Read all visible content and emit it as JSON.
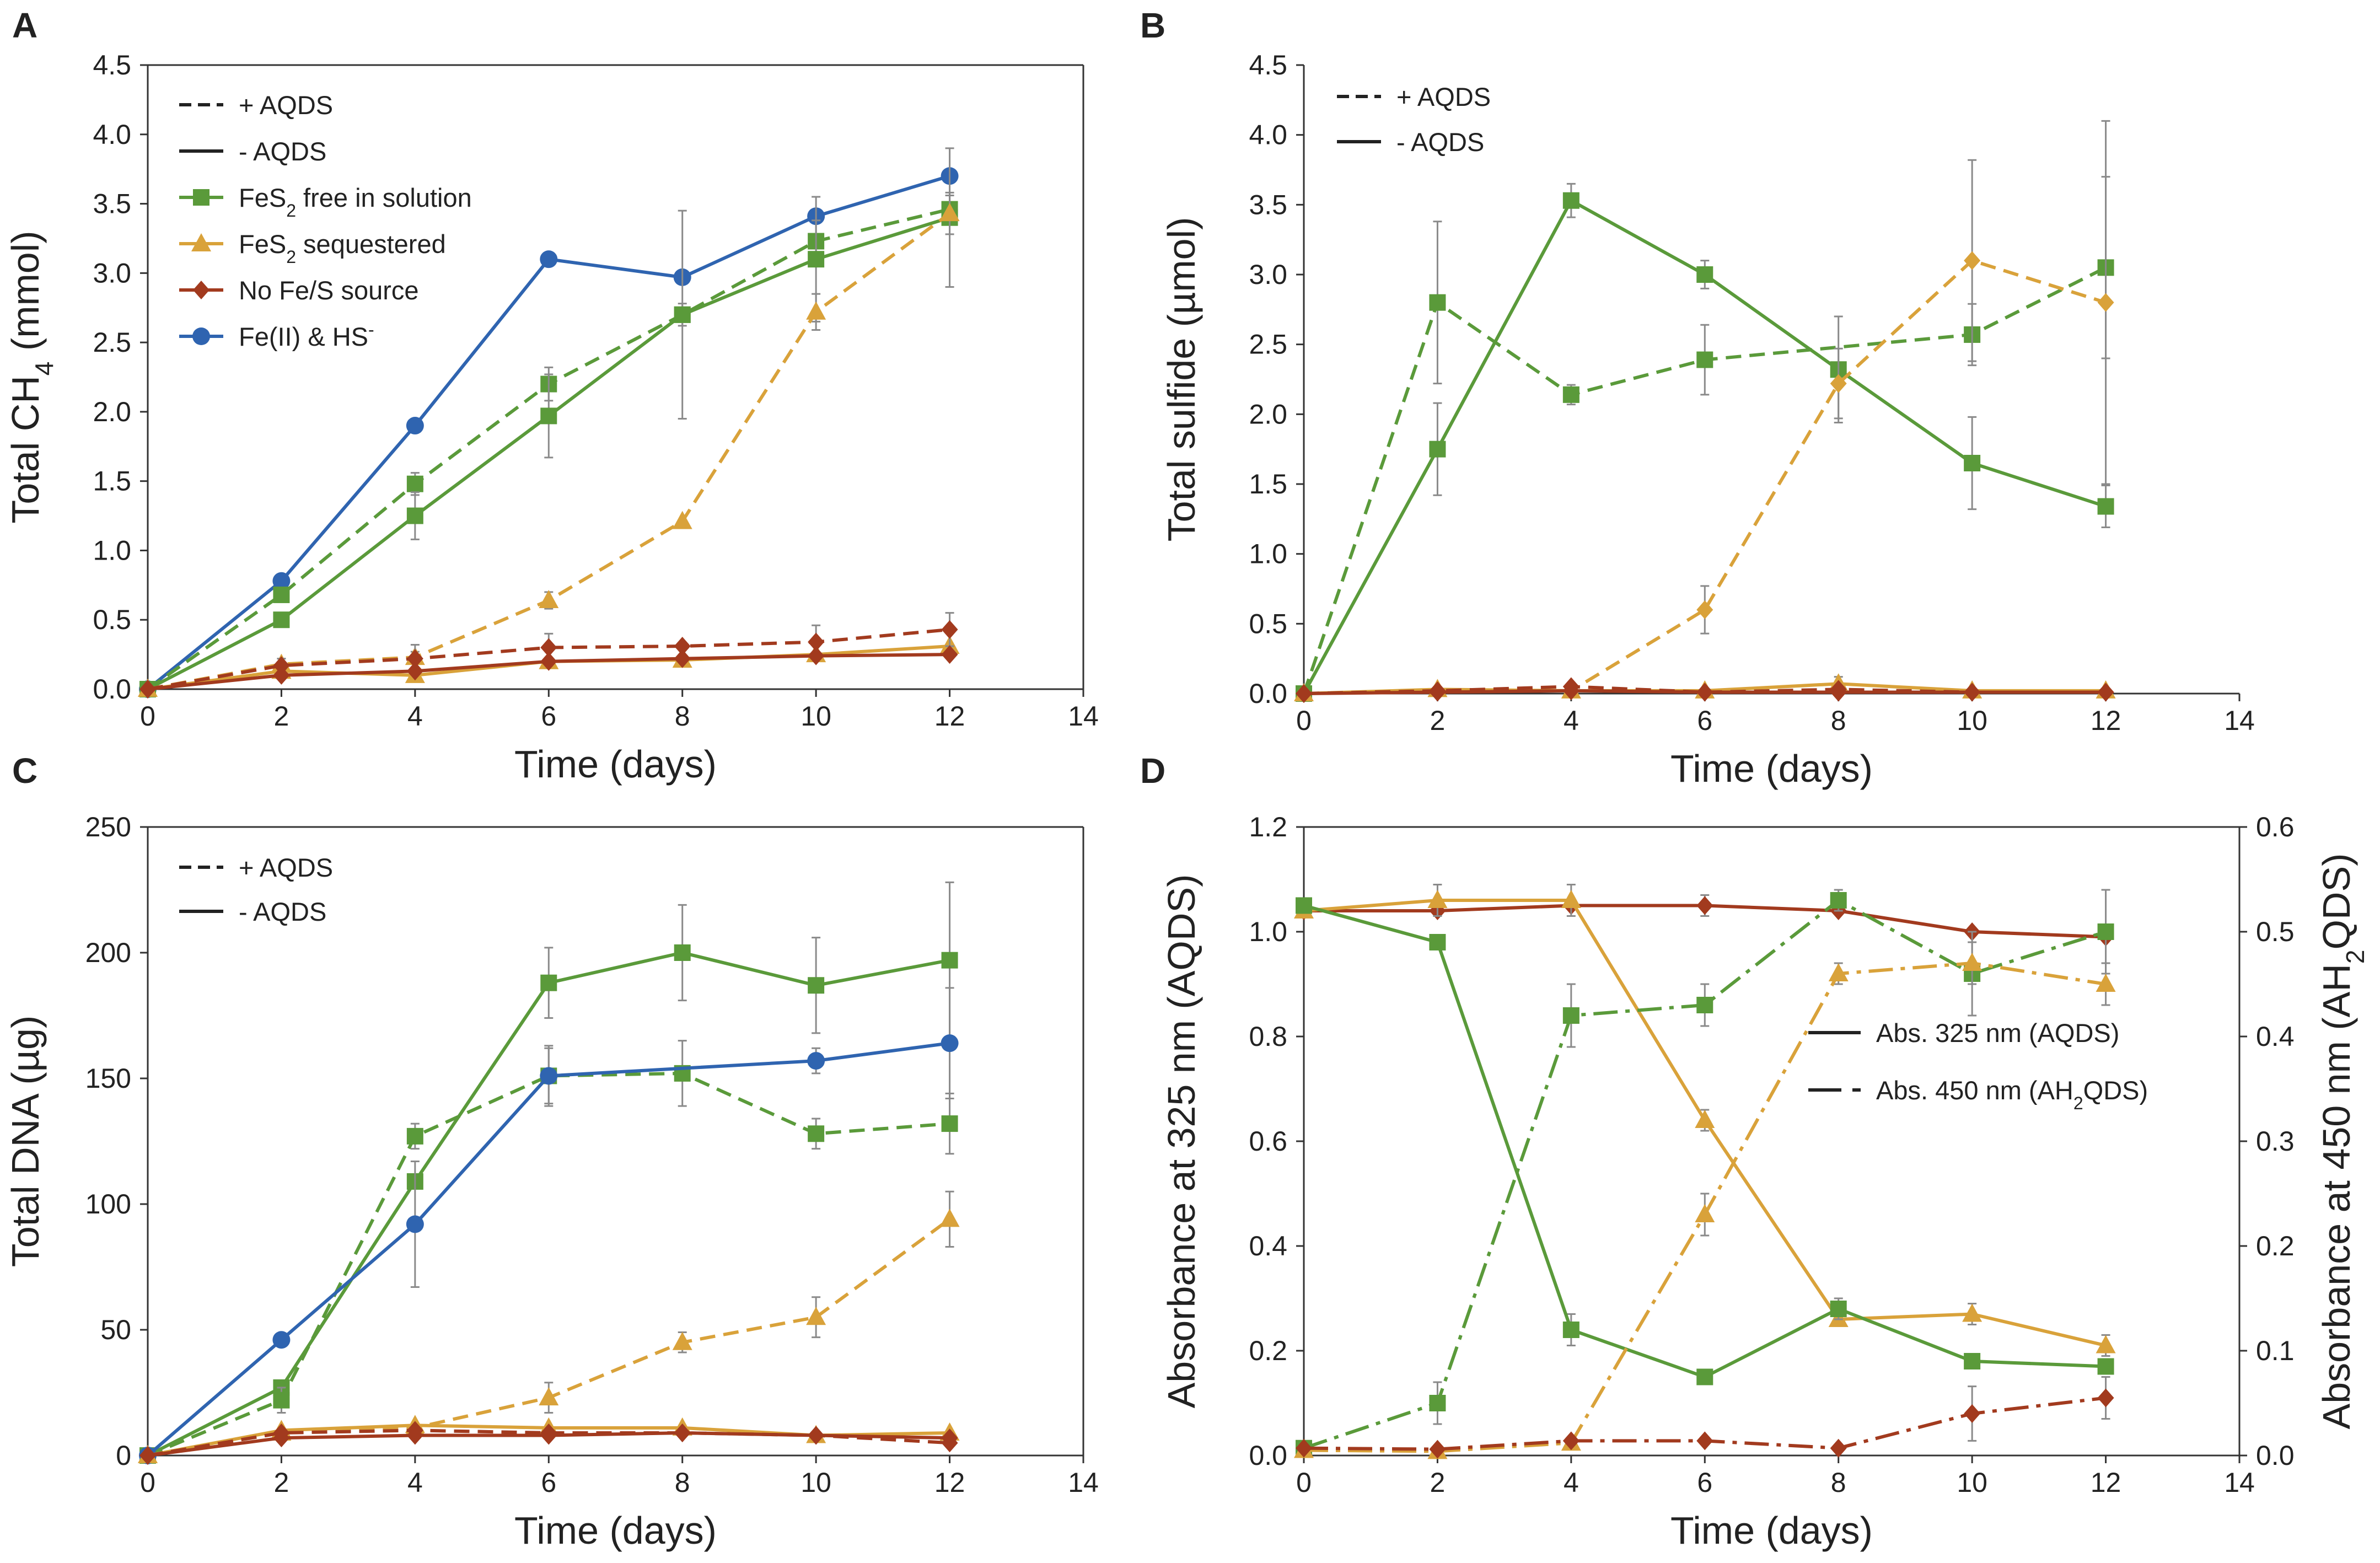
{
  "colors": {
    "green": "#5a9a3a",
    "gold": "#d9a23a",
    "brown": "#a23a1e",
    "blue": "#2f64b0",
    "errorbar": "#8a8a8a",
    "axis": "#333333"
  },
  "chart_data": [
    {
      "panel": "A",
      "type": "line",
      "xlabel": "Time (days)",
      "ylabel_main": "Total CH",
      "ylabel_sub": "4",
      "ylabel_end": " (mmol)",
      "xlim": [
        0,
        14
      ],
      "ylim": [
        0,
        4.5
      ],
      "xticks": [
        0,
        2,
        4,
        6,
        8,
        10,
        12,
        14
      ],
      "yticks": [
        0,
        0.5,
        1,
        1.5,
        2,
        2.5,
        3,
        3.5,
        4,
        4.5
      ],
      "ytick_decimals": 1,
      "legend": [
        {
          "label": "+ AQDS",
          "style": "dashed",
          "color": "#222222"
        },
        {
          "label": "- AQDS",
          "style": "solid",
          "color": "#222222"
        },
        {
          "label_pre": "FeS",
          "label_sub": "2",
          "label_post": " free in solution",
          "color": "#5a9a3a",
          "marker": "square"
        },
        {
          "label_pre": "FeS",
          "label_sub": "2",
          "label_post": " sequestered",
          "color": "#d9a23a",
          "marker": "triangle"
        },
        {
          "label": "No Fe/S source",
          "color": "#a23a1e",
          "marker": "diamond"
        },
        {
          "label_pre": "Fe(II) & HS",
          "label_sup": "-",
          "color": "#2f64b0",
          "marker": "circle"
        }
      ],
      "series": [
        {
          "name": "Fe(II) & HS-",
          "dash": "solid",
          "color": "#2f64b0",
          "marker": "circle",
          "x": [
            0,
            2,
            4,
            6,
            8,
            10,
            12
          ],
          "y": [
            0,
            0.78,
            1.9,
            3.1,
            2.97,
            3.41,
            3.7
          ],
          "err": [
            0,
            0,
            0,
            0,
            0,
            0,
            0
          ]
        },
        {
          "name": "FeS2 free in solution +AQDS",
          "dash": "dashed",
          "color": "#5a9a3a",
          "marker": "square",
          "x": [
            0,
            2,
            4,
            6,
            8,
            10,
            12
          ],
          "y": [
            0,
            0.68,
            1.48,
            2.2,
            2.7,
            3.23,
            3.46
          ],
          "err": [
            0,
            0.05,
            0.08,
            0.12,
            0.08,
            0.15,
            0.1
          ]
        },
        {
          "name": "FeS2 free in solution -AQDS",
          "dash": "solid",
          "color": "#5a9a3a",
          "marker": "square",
          "x": [
            0,
            2,
            4,
            6,
            8,
            10,
            12
          ],
          "y": [
            0,
            0.5,
            1.25,
            1.97,
            2.7,
            3.1,
            3.4
          ],
          "err": [
            0,
            0.03,
            0.17,
            0.3,
            0.75,
            0.45,
            0.5
          ]
        },
        {
          "name": "FeS2 sequestered +AQDS",
          "dash": "dashed",
          "color": "#d9a23a",
          "marker": "triangle",
          "x": [
            0,
            2,
            4,
            6,
            8,
            10,
            12
          ],
          "y": [
            0,
            0.18,
            0.23,
            0.64,
            1.21,
            2.72,
            3.43
          ],
          "err": [
            0,
            0,
            0.04,
            0.06,
            0,
            0.13,
            0.15
          ]
        },
        {
          "name": "FeS2 sequestered -AQDS",
          "dash": "solid",
          "color": "#d9a23a",
          "marker": "triangle",
          "x": [
            0,
            2,
            4,
            6,
            8,
            10,
            12
          ],
          "y": [
            0,
            0.13,
            0.1,
            0.2,
            0.21,
            0.25,
            0.31
          ],
          "err": [
            0,
            0,
            0,
            0,
            0,
            0,
            0
          ]
        },
        {
          "name": "No Fe/S source +AQDS",
          "dash": "dashed",
          "color": "#a23a1e",
          "marker": "diamond",
          "x": [
            0,
            2,
            4,
            6,
            8,
            10,
            12
          ],
          "y": [
            0,
            0.17,
            0.22,
            0.3,
            0.31,
            0.34,
            0.43
          ],
          "err": [
            0,
            0.05,
            0.1,
            0.1,
            0,
            0.12,
            0.12
          ]
        },
        {
          "name": "No Fe/S source -AQDS",
          "dash": "solid",
          "color": "#a23a1e",
          "marker": "diamond",
          "x": [
            0,
            2,
            4,
            6,
            8,
            10,
            12
          ],
          "y": [
            0,
            0.1,
            0.13,
            0.2,
            0.22,
            0.24,
            0.25
          ],
          "err": [
            0,
            0,
            0,
            0,
            0,
            0,
            0
          ]
        }
      ]
    },
    {
      "panel": "B",
      "type": "line",
      "xlabel": "Time (days)",
      "ylabel_main": "Total sulfide (µmol)",
      "xlim": [
        0,
        14
      ],
      "ylim": [
        0,
        4.5
      ],
      "xticks": [
        0,
        2,
        4,
        6,
        8,
        10,
        12,
        14
      ],
      "yticks": [
        0,
        0.5,
        1,
        1.5,
        2,
        2.5,
        3,
        3.5,
        4,
        4.5
      ],
      "ytick_decimals": 1,
      "legend": [
        {
          "label": "+ AQDS",
          "style": "dashed",
          "color": "#222222"
        },
        {
          "label": "- AQDS",
          "style": "solid",
          "color": "#222222"
        }
      ],
      "series": [
        {
          "name": "FeS2 free +AQDS",
          "dash": "dashed",
          "color": "#5a9a3a",
          "marker": "square",
          "x": [
            0,
            2,
            4,
            6,
            10,
            12
          ],
          "y": [
            0,
            2.8,
            2.14,
            2.39,
            2.57,
            3.05
          ],
          "err": [
            0,
            0.58,
            0.07,
            0.25,
            0.22,
            0.65
          ]
        },
        {
          "name": "FeS2 free -AQDS",
          "dash": "solid",
          "color": "#5a9a3a",
          "marker": "square",
          "x": [
            0,
            2,
            4,
            6,
            8,
            10,
            12
          ],
          "y": [
            0,
            1.75,
            3.53,
            3.0,
            2.32,
            1.65,
            1.34
          ],
          "err": [
            0,
            0.33,
            0.12,
            0.1,
            0.38,
            0.33,
            0.15
          ]
        },
        {
          "name": "FeS2 sequestered +AQDS",
          "dash": "dashed",
          "color": "#d9a23a",
          "marker": "diamond",
          "x": [
            0,
            2,
            4,
            6,
            8,
            10,
            12
          ],
          "y": [
            0,
            0.02,
            0.02,
            0.6,
            2.22,
            3.1,
            2.8
          ],
          "err": [
            0,
            0,
            0,
            0.17,
            0.25,
            0.72,
            1.3
          ]
        },
        {
          "name": "FeS2 sequestered -AQDS",
          "dash": "solid",
          "color": "#d9a23a",
          "marker": "triangle",
          "x": [
            0,
            2,
            4,
            6,
            8,
            10,
            12
          ],
          "y": [
            0,
            0.03,
            0.02,
            0.02,
            0.07,
            0.02,
            0.02
          ],
          "err": [
            0,
            0,
            0,
            0,
            0.05,
            0,
            0
          ]
        },
        {
          "name": "No Fe/S source +AQDS",
          "dash": "dashed",
          "color": "#a23a1e",
          "marker": "diamond",
          "x": [
            0,
            2,
            4,
            6,
            8,
            10,
            12
          ],
          "y": [
            0,
            0.02,
            0.05,
            0.01,
            0.03,
            0.01,
            0.01
          ],
          "err": [
            0,
            0,
            0,
            0,
            0,
            0,
            0
          ]
        },
        {
          "name": "No Fe/S source -AQDS",
          "dash": "solid",
          "color": "#a23a1e",
          "marker": "diamond",
          "x": [
            0,
            2,
            4,
            6,
            8,
            10,
            12
          ],
          "y": [
            0,
            0.01,
            0.02,
            0.01,
            0.01,
            0.01,
            0.01
          ],
          "err": [
            0,
            0,
            0,
            0,
            0,
            0,
            0
          ]
        }
      ]
    },
    {
      "panel": "C",
      "type": "line",
      "xlabel": "Time (days)",
      "ylabel_main": "Total DNA (µg)",
      "xlim": [
        0,
        14
      ],
      "ylim": [
        0,
        250
      ],
      "xticks": [
        0,
        2,
        4,
        6,
        8,
        10,
        12,
        14
      ],
      "yticks": [
        0,
        50,
        100,
        150,
        200,
        250
      ],
      "ytick_decimals": 0,
      "legend": [
        {
          "label": "+ AQDS",
          "style": "dashed",
          "color": "#222222"
        },
        {
          "label": "- AQDS",
          "style": "solid",
          "color": "#222222"
        }
      ],
      "series": [
        {
          "name": "FeS2 free -AQDS",
          "dash": "solid",
          "color": "#5a9a3a",
          "marker": "square",
          "x": [
            0,
            2,
            4,
            6,
            8,
            10,
            12
          ],
          "y": [
            0,
            27,
            109,
            188,
            200,
            187,
            197
          ],
          "err": [
            0,
            0,
            0,
            14,
            19,
            19,
            31
          ]
        },
        {
          "name": "FeS2 free +AQDS",
          "dash": "dashed",
          "color": "#5a9a3a",
          "marker": "square",
          "x": [
            0,
            2,
            4,
            6,
            8,
            10,
            12
          ],
          "y": [
            0,
            22,
            127,
            151,
            152,
            128,
            132
          ],
          "err": [
            0,
            5,
            5,
            11,
            13,
            6,
            12
          ]
        },
        {
          "name": "Fe(II) & HS-",
          "dash": "solid",
          "color": "#2f64b0",
          "marker": "circle",
          "x": [
            0,
            2,
            4,
            6,
            10,
            12
          ],
          "y": [
            0,
            46,
            92,
            151,
            157,
            164
          ],
          "err": [
            0,
            0,
            25,
            12,
            5,
            22
          ]
        },
        {
          "name": "FeS2 sequestered +AQDS",
          "dash": "dashed",
          "color": "#d9a23a",
          "marker": "triangle",
          "x": [
            0,
            2,
            4,
            6,
            8,
            10,
            12
          ],
          "y": [
            0,
            9,
            11,
            23,
            45,
            55,
            94
          ],
          "err": [
            0,
            0,
            0,
            6,
            4,
            8,
            11
          ]
        },
        {
          "name": "FeS2 sequestered -AQDS",
          "dash": "solid",
          "color": "#d9a23a",
          "marker": "triangle",
          "x": [
            0,
            2,
            4,
            6,
            8,
            10,
            12
          ],
          "y": [
            0,
            10,
            12,
            11,
            11,
            8,
            9
          ],
          "err": [
            0,
            0,
            0,
            0,
            0,
            0,
            0
          ]
        },
        {
          "name": "No Fe/S source -AQDS",
          "dash": "solid",
          "color": "#a23a1e",
          "marker": "diamond",
          "x": [
            0,
            2,
            4,
            6,
            8,
            10,
            12
          ],
          "y": [
            0,
            7,
            8,
            8,
            9,
            8,
            7
          ],
          "err": [
            0,
            0,
            0,
            0,
            0,
            0,
            0
          ]
        },
        {
          "name": "No Fe/S source +AQDS",
          "dash": "dashed",
          "color": "#a23a1e",
          "marker": "diamond",
          "x": [
            0,
            2,
            4,
            6,
            8,
            10,
            12
          ],
          "y": [
            0,
            9,
            10,
            9,
            9,
            8,
            5
          ],
          "err": [
            0,
            0,
            0,
            0,
            0,
            0,
            0
          ]
        }
      ]
    },
    {
      "panel": "D",
      "type": "line",
      "xlabel": "Time (days)",
      "ylabel_main": "Absorbance at 325 nm (AQDS)",
      "ylabel_right_pre": "Absorbance at 450 nm (AH",
      "ylabel_right_sub": "2",
      "ylabel_right_post": "QDS)",
      "xlim": [
        0,
        14
      ],
      "ylim": [
        0,
        1.2
      ],
      "ylim_right": [
        0,
        0.6
      ],
      "xticks": [
        0,
        2,
        4,
        6,
        8,
        10,
        12,
        14
      ],
      "yticks": [
        0,
        0.2,
        0.4,
        0.6,
        0.8,
        1,
        1.2
      ],
      "yticks_right": [
        0,
        0.1,
        0.2,
        0.3,
        0.4,
        0.5,
        0.6
      ],
      "ytick_decimals": 1,
      "legend": [
        {
          "label": "Abs. 325 nm (AQDS)",
          "style": "solid",
          "color": "#222222"
        },
        {
          "label_pre": "Abs. 450 nm (AH",
          "label_sub": "2",
          "label_post": "QDS)",
          "style": "longdash",
          "color": "#222222"
        }
      ],
      "series": [
        {
          "name": "No Fe/S source 325",
          "dash": "solid",
          "color": "#a23a1e",
          "marker": "diamond",
          "axis": "left",
          "x": [
            0,
            2,
            4,
            6,
            8,
            10,
            12
          ],
          "y": [
            1.04,
            1.04,
            1.05,
            1.05,
            1.04,
            1.0,
            0.99
          ],
          "err": [
            0,
            0,
            0,
            0.02,
            0,
            0,
            0
          ]
        },
        {
          "name": "FeS2 sequestered 325",
          "dash": "solid",
          "color": "#d9a23a",
          "marker": "triangle",
          "axis": "left",
          "x": [
            0,
            2,
            4,
            6,
            8,
            10,
            12
          ],
          "y": [
            1.04,
            1.06,
            1.06,
            0.64,
            0.26,
            0.27,
            0.21
          ],
          "err": [
            0,
            0.03,
            0.03,
            0.02,
            0,
            0.02,
            0.02
          ]
        },
        {
          "name": "FeS2 free 325",
          "dash": "solid",
          "color": "#5a9a3a",
          "marker": "square",
          "axis": "left",
          "x": [
            0,
            2,
            4,
            6,
            8,
            10,
            12
          ],
          "y": [
            1.05,
            0.98,
            0.24,
            0.15,
            0.28,
            0.18,
            0.17
          ],
          "err": [
            0,
            0,
            0.03,
            0.01,
            0.02,
            0,
            0
          ]
        },
        {
          "name": "FeS2 free 450",
          "dash": "dashdot",
          "color": "#5a9a3a",
          "marker": "square",
          "axis": "right",
          "x": [
            0,
            2,
            4,
            6,
            8,
            10,
            12
          ],
          "y": [
            0.007,
            0.05,
            0.42,
            0.43,
            0.53,
            0.46,
            0.5
          ],
          "err": [
            0,
            0.02,
            0.03,
            0.02,
            0.01,
            0.04,
            0.04
          ]
        },
        {
          "name": "FeS2 sequestered 450",
          "dash": "dashdot",
          "color": "#d9a23a",
          "marker": "triangle",
          "axis": "right",
          "x": [
            0,
            2,
            4,
            6,
            8,
            10,
            12
          ],
          "y": [
            0.005,
            0.004,
            0.012,
            0.23,
            0.46,
            0.47,
            0.45
          ],
          "err": [
            0,
            0,
            0,
            0.02,
            0.01,
            0.02,
            0.02
          ]
        },
        {
          "name": "No Fe/S source 450",
          "dash": "dashdot",
          "color": "#a23a1e",
          "marker": "diamond",
          "axis": "right",
          "x": [
            0,
            2,
            4,
            6,
            8,
            10,
            12
          ],
          "y": [
            0.007,
            0.006,
            0.014,
            0.014,
            0.007,
            0.04,
            0.055
          ],
          "err": [
            0,
            0,
            0,
            0,
            0,
            0.026,
            0.02
          ]
        }
      ]
    }
  ]
}
